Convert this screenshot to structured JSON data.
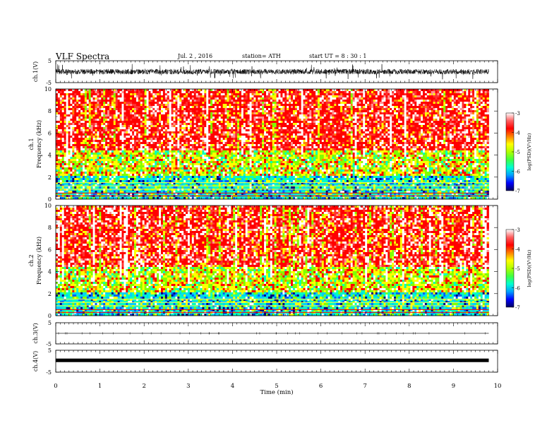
{
  "header": {
    "title": "VLF  Spectra",
    "date": "Jul.  2  , 2016",
    "station": "station= ATH",
    "start": "start  UT  =   8  : 30 : 1"
  },
  "chart_data": [
    {
      "type": "line",
      "id": "ch1-waveform",
      "ylabel": "ch.1(V)",
      "ylim": [
        -5,
        5
      ],
      "yticks": [
        "5",
        "-5"
      ],
      "description_values": {
        "baseline": 0,
        "amplitude_typical": 1.2,
        "amplitude_peak": 3.5
      }
    },
    {
      "type": "heatmap",
      "id": "ch1-spectrogram",
      "ylabel_channel": "ch.1",
      "ylabel": "Frequency  (kHz)",
      "ylim": [
        0,
        10
      ],
      "yticks": [
        "0",
        "2",
        "4",
        "6",
        "8",
        "10"
      ],
      "colorbar": {
        "label": "log(PSD)(V²/Hz)",
        "range": [
          -7,
          -3
        ],
        "ticks": [
          "-3",
          "-4",
          "-5",
          "-6",
          "-7"
        ]
      }
    },
    {
      "type": "heatmap",
      "id": "ch2-spectrogram",
      "ylabel_channel": "ch.2",
      "ylabel": "Frequency  (kHz)",
      "ylim": [
        0,
        10
      ],
      "yticks": [
        "0",
        "2",
        "4",
        "6",
        "8",
        "10"
      ],
      "colorbar": {
        "label": "log(PSD)(V²/Hz)",
        "range": [
          -7,
          -3
        ],
        "ticks": [
          "-3",
          "-4",
          "-5",
          "-6",
          "-7"
        ]
      }
    },
    {
      "type": "line",
      "id": "ch3-waveform",
      "ylabel": "ch.3(V)",
      "ylim": [
        -5,
        5
      ],
      "yticks": [
        "5",
        "-5"
      ],
      "description_values": {
        "baseline": 0,
        "amplitude_typical": 0.05
      }
    },
    {
      "type": "line",
      "id": "ch4-waveform",
      "ylabel": "ch.4(V)",
      "ylim": [
        -5,
        5
      ],
      "yticks": [
        "5",
        "-5"
      ],
      "description_values": {
        "baseline": 0.4,
        "amplitude_typical": 0.1
      }
    }
  ],
  "xaxis": {
    "label": "Time  (min)",
    "range": [
      0,
      10
    ],
    "ticks": [
      "0",
      "1",
      "2",
      "3",
      "4",
      "5",
      "6",
      "7",
      "8",
      "9",
      "10"
    ],
    "data_end": 9.8
  },
  "colors": {
    "scale": [
      "#000080",
      "#0000ff",
      "#00b0ff",
      "#00ffc0",
      "#80ff00",
      "#ffff00",
      "#ff8000",
      "#ff0000",
      "#ff9090",
      "#ffffff"
    ]
  }
}
